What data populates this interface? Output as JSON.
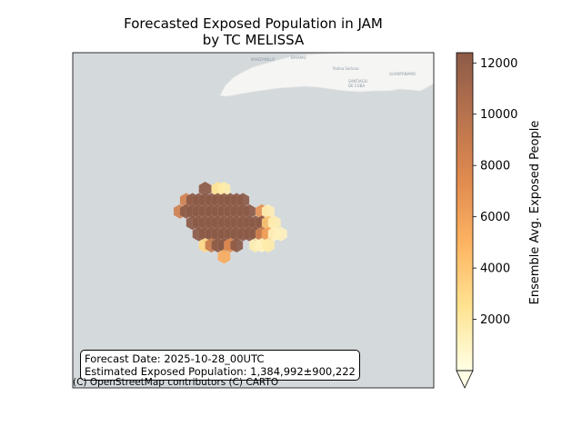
{
  "chart_data": {
    "type": "heatmap",
    "title_line1": "Forecasted Exposed Population in JAM",
    "title_line2": "by TC MELISSA",
    "colorbar_label": "Ensemble Avg. Exposed People",
    "colorbar_ticks": [
      2000,
      4000,
      6000,
      8000,
      10000,
      12000
    ],
    "colorbar_tick_labels": [
      "2000",
      "4000",
      "6000",
      "8000",
      "10000",
      "12000"
    ],
    "colorbar_range": [
      0,
      12400
    ],
    "colormap": [
      "#ffffe5",
      "#fee391",
      "#fdb462",
      "#e08a4f",
      "#b8734e",
      "#8c5a47"
    ],
    "map_background": "#d4d9dc",
    "land_color": "#f5f5f3",
    "hexbins": [
      {
        "row": 0,
        "col": 6,
        "value": 12400
      },
      {
        "row": 0,
        "col": 8,
        "value": 2500
      },
      {
        "row": 0,
        "col": 9,
        "value": 1800
      },
      {
        "row": 1,
        "col": 3,
        "value": 8500
      },
      {
        "row": 1,
        "col": 4,
        "value": 12400
      },
      {
        "row": 1,
        "col": 5,
        "value": 12400
      },
      {
        "row": 1,
        "col": 6,
        "value": 12400
      },
      {
        "row": 1,
        "col": 7,
        "value": 12400
      },
      {
        "row": 1,
        "col": 8,
        "value": 12400
      },
      {
        "row": 1,
        "col": 9,
        "value": 12400
      },
      {
        "row": 1,
        "col": 10,
        "value": 12400
      },
      {
        "row": 1,
        "col": 11,
        "value": 12400
      },
      {
        "row": 1,
        "col": 12,
        "value": 12400
      },
      {
        "row": 2,
        "col": 2,
        "value": 8500
      },
      {
        "row": 2,
        "col": 3,
        "value": 12400
      },
      {
        "row": 2,
        "col": 4,
        "value": 12400
      },
      {
        "row": 2,
        "col": 5,
        "value": 12400
      },
      {
        "row": 2,
        "col": 6,
        "value": 12400
      },
      {
        "row": 2,
        "col": 7,
        "value": 12400
      },
      {
        "row": 2,
        "col": 8,
        "value": 12400
      },
      {
        "row": 2,
        "col": 9,
        "value": 12400
      },
      {
        "row": 2,
        "col": 10,
        "value": 12400
      },
      {
        "row": 2,
        "col": 11,
        "value": 12400
      },
      {
        "row": 2,
        "col": 12,
        "value": 12400
      },
      {
        "row": 2,
        "col": 13,
        "value": 12400
      },
      {
        "row": 2,
        "col": 15,
        "value": 7000
      },
      {
        "row": 2,
        "col": 16,
        "value": 1500
      },
      {
        "row": 3,
        "col": 4,
        "value": 12400
      },
      {
        "row": 3,
        "col": 5,
        "value": 12400
      },
      {
        "row": 3,
        "col": 6,
        "value": 12400
      },
      {
        "row": 3,
        "col": 7,
        "value": 12400
      },
      {
        "row": 3,
        "col": 8,
        "value": 12400
      },
      {
        "row": 3,
        "col": 9,
        "value": 12400
      },
      {
        "row": 3,
        "col": 10,
        "value": 12400
      },
      {
        "row": 3,
        "col": 11,
        "value": 12400
      },
      {
        "row": 3,
        "col": 12,
        "value": 12400
      },
      {
        "row": 3,
        "col": 13,
        "value": 12400
      },
      {
        "row": 3,
        "col": 14,
        "value": 12400
      },
      {
        "row": 3,
        "col": 15,
        "value": 12400
      },
      {
        "row": 3,
        "col": 16,
        "value": 4000
      },
      {
        "row": 3,
        "col": 17,
        "value": 1500
      },
      {
        "row": 4,
        "col": 5,
        "value": 12400
      },
      {
        "row": 4,
        "col": 6,
        "value": 12400
      },
      {
        "row": 4,
        "col": 7,
        "value": 12400
      },
      {
        "row": 4,
        "col": 8,
        "value": 12400
      },
      {
        "row": 4,
        "col": 9,
        "value": 12400
      },
      {
        "row": 4,
        "col": 10,
        "value": 12400
      },
      {
        "row": 4,
        "col": 11,
        "value": 12400
      },
      {
        "row": 4,
        "col": 12,
        "value": 12400
      },
      {
        "row": 4,
        "col": 13,
        "value": 12400
      },
      {
        "row": 4,
        "col": 14,
        "value": 12400
      },
      {
        "row": 4,
        "col": 15,
        "value": 8500
      },
      {
        "row": 4,
        "col": 16,
        "value": 6000
      },
      {
        "row": 4,
        "col": 17,
        "value": 1200
      },
      {
        "row": 4,
        "col": 18,
        "value": 1200
      },
      {
        "row": 5,
        "col": 6,
        "value": 3000
      },
      {
        "row": 5,
        "col": 7,
        "value": 9000
      },
      {
        "row": 5,
        "col": 8,
        "value": 12400
      },
      {
        "row": 5,
        "col": 9,
        "value": 12400
      },
      {
        "row": 5,
        "col": 10,
        "value": 7500
      },
      {
        "row": 5,
        "col": 11,
        "value": 12400
      },
      {
        "row": 5,
        "col": 14,
        "value": 1500
      },
      {
        "row": 5,
        "col": 15,
        "value": 1200
      },
      {
        "row": 5,
        "col": 16,
        "value": 1800
      },
      {
        "row": 6,
        "col": 9,
        "value": 5500
      }
    ],
    "place_labels": [
      "MANZANILLO",
      "BAYAMO",
      "Palma Soriano",
      "GUANTANAMO",
      "SANTIAGO",
      "DE CUBA"
    ]
  },
  "info_box": {
    "forecast_date": "Forecast Date: 2025-10-28_00UTC",
    "estimated_population": "Estimated Exposed Population: 1,384,992±900,222"
  },
  "attribution": "(C) OpenStreetMap contributors (C) CARTO"
}
